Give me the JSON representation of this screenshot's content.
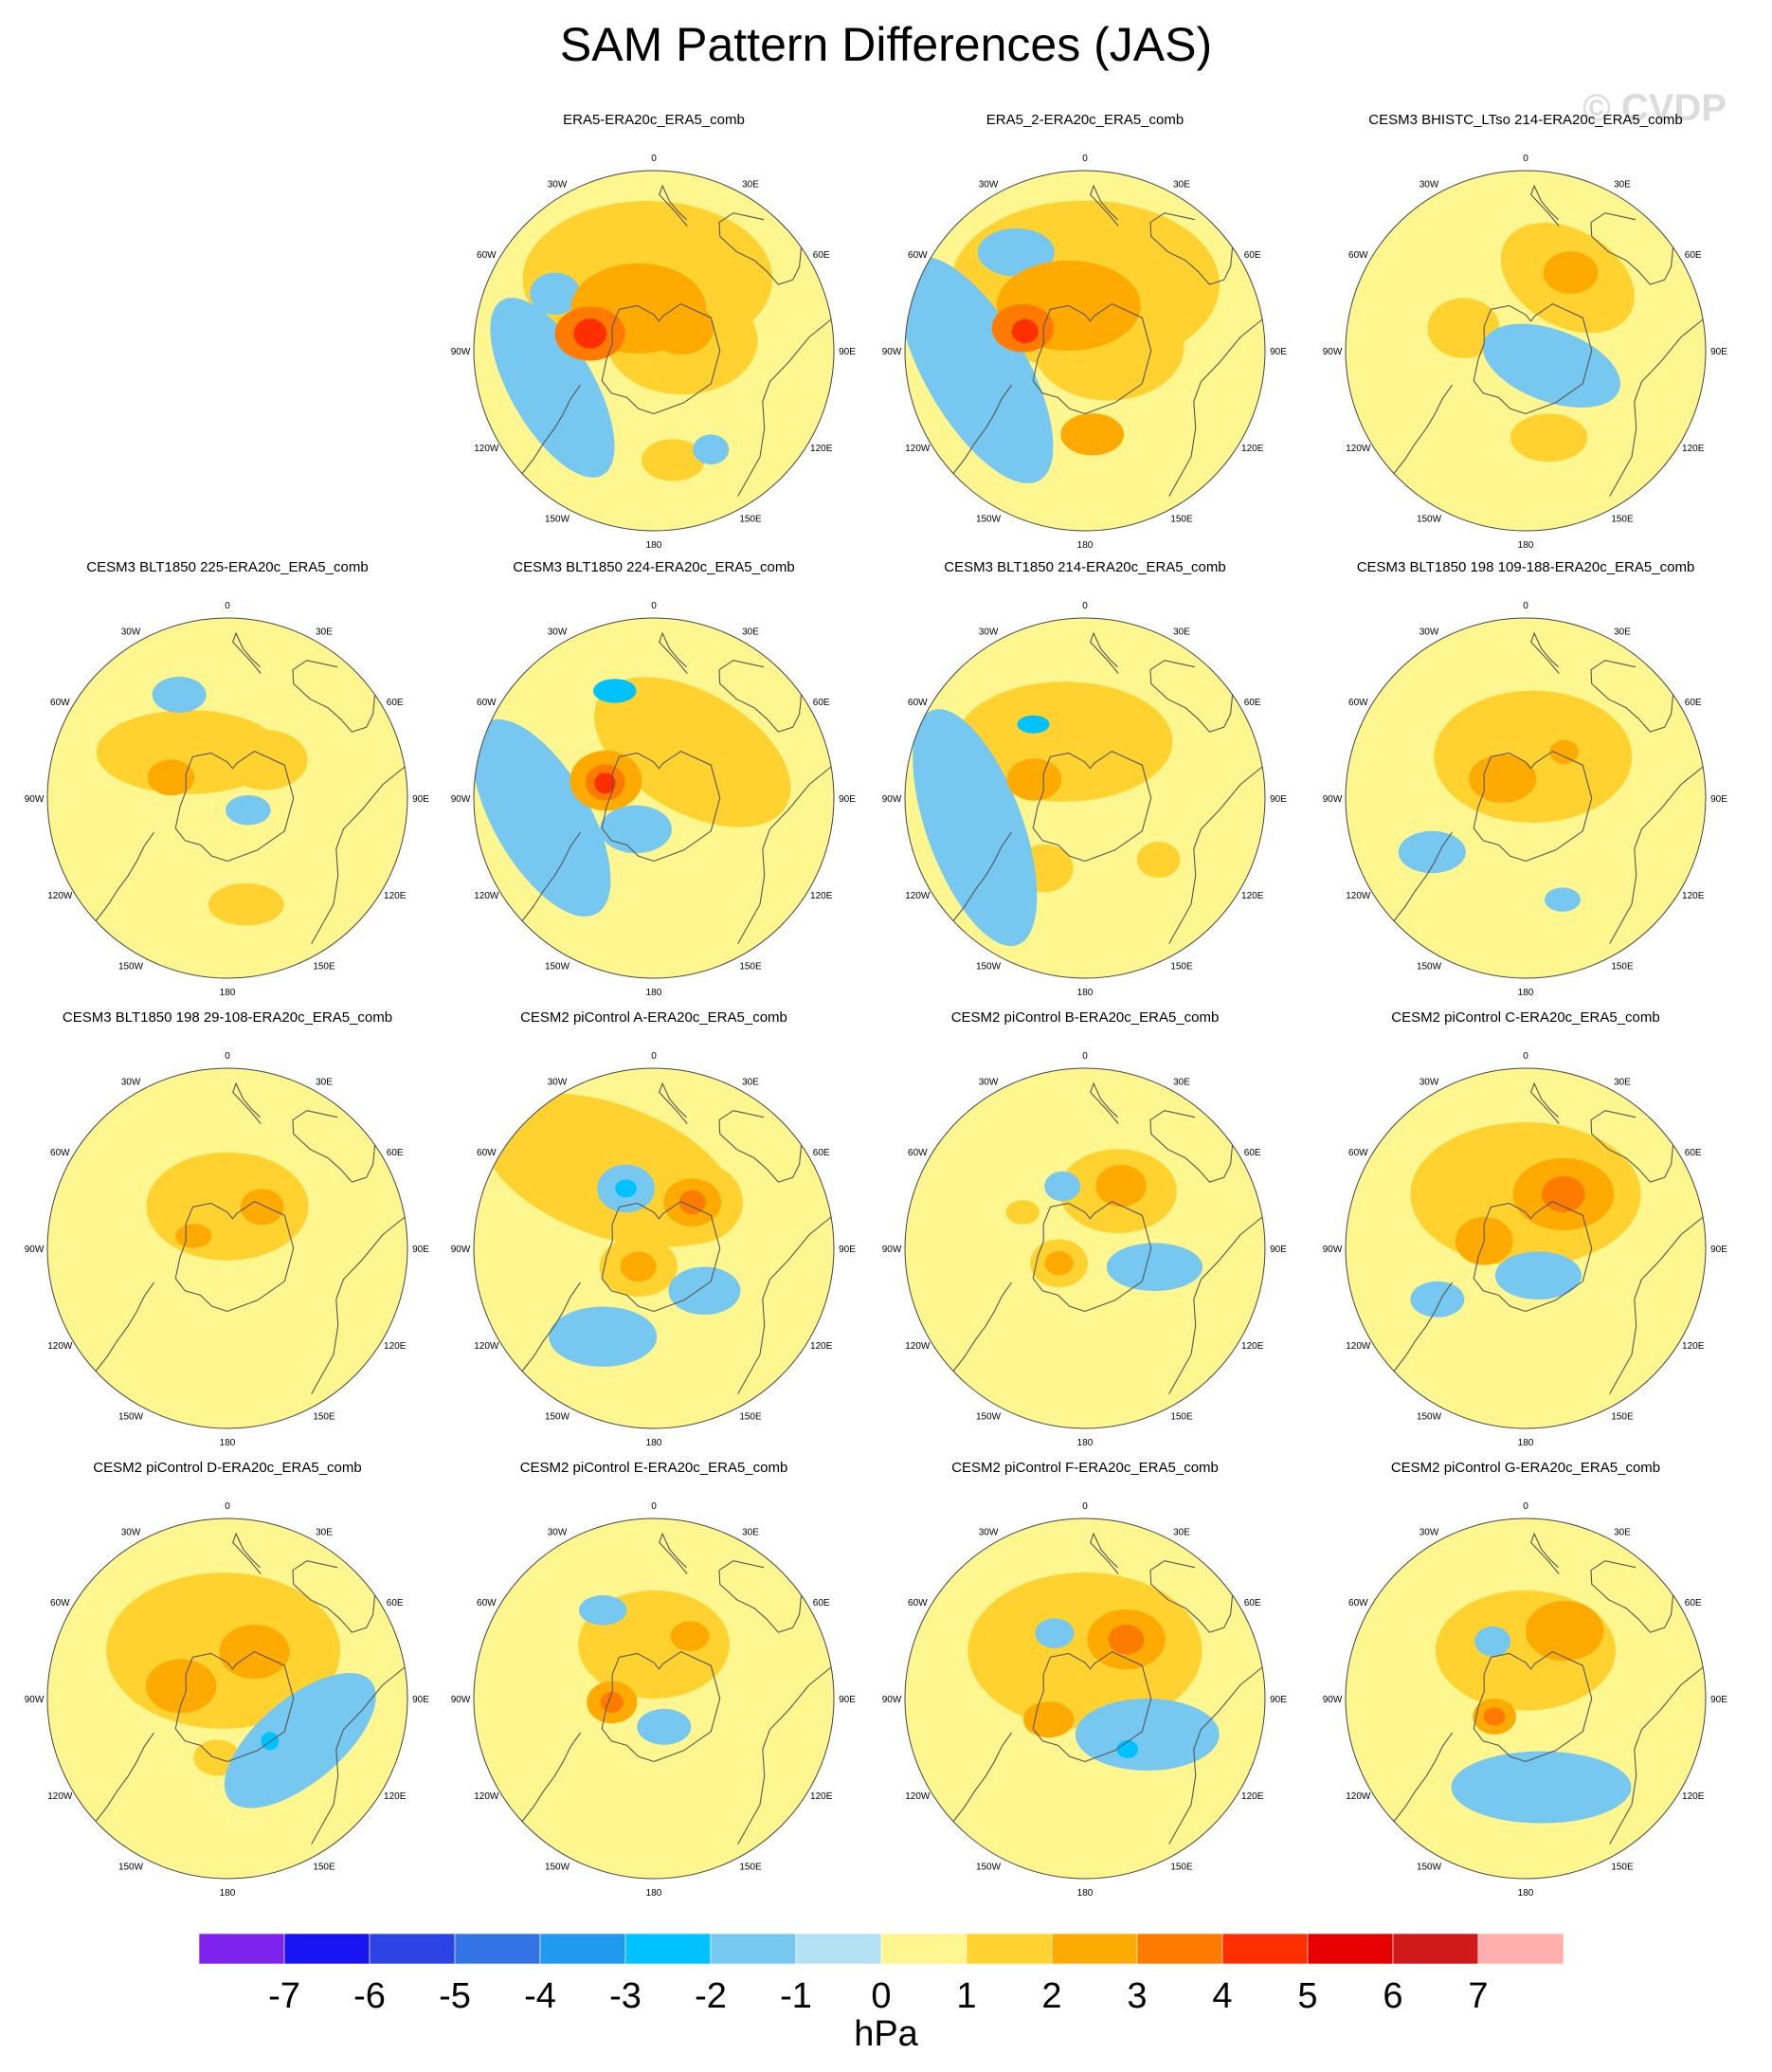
{
  "figure": {
    "title": "SAM Pattern Differences (JAS)",
    "watermark": "© CVDP"
  },
  "chart_data": {
    "type": "heatmap",
    "projection": "south-polar-stereographic",
    "variable": "SAM pattern difference",
    "units": "hPa",
    "lon_labels": [
      "0",
      "30E",
      "60E",
      "90E",
      "120E",
      "150E",
      "180",
      "150W",
      "120W",
      "90W",
      "60W",
      "30W"
    ],
    "colorbar": {
      "label": "hPa",
      "levels": [
        -7,
        -6,
        -5,
        -4,
        -3,
        -2,
        -1,
        0,
        1,
        2,
        3,
        4,
        5,
        6,
        7
      ],
      "colors": [
        "#7e22ee",
        "#1a13f3",
        "#2c44e6",
        "#3273e6",
        "#1f9af0",
        "#00c2ff",
        "#77c8f0",
        "#b3e0f3",
        "#fff68f",
        "#ffd22f",
        "#ffaa00",
        "#ff7b00",
        "#ff2f00",
        "#e60000",
        "#d01a1a",
        "#ffaeae"
      ]
    },
    "panels": [
      {
        "row": 0,
        "col": 1,
        "title": "ERA5-ERA20c_ERA5_comb",
        "blobs": [
          {
            "lon": 185,
            "colat": 24,
            "r": 26,
            "sx": 1.6,
            "rot": 0,
            "value": 1
          },
          {
            "lon": 110,
            "colat": 10,
            "r": 18,
            "sx": 1.4,
            "rot": 0,
            "value": 1
          },
          {
            "lon": 200,
            "colat": 15,
            "r": 15,
            "sx": 1.5,
            "rot": 0,
            "value": 2
          },
          {
            "lon": 130,
            "colat": 12,
            "r": 9,
            "sx": 1.2,
            "rot": 0,
            "value": 2
          },
          {
            "lon": 255,
            "colat": 22,
            "r": 9,
            "sx": 1.3,
            "rot": 0,
            "value": 3
          },
          {
            "lon": 255,
            "colat": 22,
            "r": 5,
            "sx": 1.1,
            "rot": 0,
            "value": 4
          },
          {
            "lon": 10,
            "colat": 37,
            "r": 7,
            "sx": 1.5,
            "rot": 0,
            "value": 1
          },
          {
            "lon": 290,
            "colat": 36,
            "r": 14,
            "sx": 2.4,
            "rot": 60,
            "value": -1
          },
          {
            "lon": 240,
            "colat": 38,
            "r": 7,
            "sx": 1.2,
            "rot": 0,
            "value": -1
          },
          {
            "lon": 30,
            "colat": 38,
            "r": 5,
            "sx": 1.2,
            "rot": 0,
            "value": -1
          }
        ]
      },
      {
        "row": 0,
        "col": 2,
        "title": "ERA5_2-ERA20c_ERA5_comb",
        "blobs": [
          {
            "lon": 180,
            "colat": 22,
            "r": 28,
            "sx": 1.6,
            "rot": 0,
            "value": 1
          },
          {
            "lon": 100,
            "colat": 8,
            "r": 18,
            "sx": 1.4,
            "rot": 0,
            "value": 1
          },
          {
            "lon": 200,
            "colat": 16,
            "r": 15,
            "sx": 1.6,
            "rot": 0,
            "value": 2
          },
          {
            "lon": 5,
            "colat": 28,
            "r": 7,
            "sx": 1.5,
            "rot": 0,
            "value": 2
          },
          {
            "lon": 250,
            "colat": 22,
            "r": 8,
            "sx": 1.3,
            "rot": 0,
            "value": 3
          },
          {
            "lon": 252,
            "colat": 21,
            "r": 4,
            "sx": 1.1,
            "rot": 0,
            "value": 4
          },
          {
            "lon": 280,
            "colat": 37,
            "r": 17,
            "sx": 2.5,
            "rot": 60,
            "value": -1
          },
          {
            "lon": 215,
            "colat": 40,
            "r": 8,
            "sx": 1.6,
            "rot": 0,
            "value": -1
          }
        ]
      },
      {
        "row": 0,
        "col": 3,
        "title": "CESM3 BHISTC_LTso 214-ERA20c_ERA5_comb",
        "blobs": [
          {
            "lon": 150,
            "colat": 28,
            "r": 16,
            "sx": 1.5,
            "rot": 30,
            "value": 1
          },
          {
            "lon": 150,
            "colat": 30,
            "r": 7,
            "sx": 1.3,
            "rot": 0,
            "value": 2
          },
          {
            "lon": 250,
            "colat": 22,
            "r": 10,
            "sx": 1.2,
            "rot": 0,
            "value": 1
          },
          {
            "lon": 15,
            "colat": 30,
            "r": 8,
            "sx": 1.6,
            "rot": 0,
            "value": 1
          },
          {
            "lon": 60,
            "colat": 10,
            "r": 12,
            "sx": 2.0,
            "rot": 20,
            "value": -1
          }
        ]
      },
      {
        "row": 1,
        "col": 0,
        "title": "CESM3 BLT1850 225-ERA20c_ERA5_comb",
        "blobs": [
          {
            "lon": 220,
            "colat": 20,
            "r": 14,
            "sx": 2.2,
            "rot": 0,
            "value": 1
          },
          {
            "lon": 135,
            "colat": 18,
            "r": 10,
            "sx": 1.4,
            "rot": 0,
            "value": 1
          },
          {
            "lon": 250,
            "colat": 20,
            "r": 6,
            "sx": 1.3,
            "rot": 0,
            "value": 2
          },
          {
            "lon": 10,
            "colat": 36,
            "r": 7,
            "sx": 1.8,
            "rot": 0,
            "value": 1
          },
          {
            "lon": 205,
            "colat": 38,
            "r": 6,
            "sx": 1.5,
            "rot": 0,
            "value": -1
          },
          {
            "lon": 60,
            "colat": 8,
            "r": 5,
            "sx": 1.5,
            "rot": 0,
            "value": -1
          }
        ]
      },
      {
        "row": 1,
        "col": 1,
        "title": "CESM3 BLT1850 224-ERA20c_ERA5_comb",
        "blobs": [
          {
            "lon": 140,
            "colat": 20,
            "r": 20,
            "sx": 1.8,
            "rot": 30,
            "value": 1
          },
          {
            "lon": 250,
            "colat": 17,
            "r": 10,
            "sx": 1.2,
            "rot": 0,
            "value": 2
          },
          {
            "lon": 252,
            "colat": 17,
            "r": 6,
            "sx": 1.1,
            "rot": 0,
            "value": 3
          },
          {
            "lon": 253,
            "colat": 17,
            "r": 3.5,
            "sx": 1.0,
            "rot": 0,
            "value": 4
          },
          {
            "lon": 280,
            "colat": 38,
            "r": 16,
            "sx": 2.3,
            "rot": 60,
            "value": -1
          },
          {
            "lon": 200,
            "colat": 38,
            "r": 4,
            "sx": 1.8,
            "rot": 0,
            "value": -2
          },
          {
            "lon": 330,
            "colat": 12,
            "r": 8,
            "sx": 1.5,
            "rot": 0,
            "value": -1
          }
        ]
      },
      {
        "row": 1,
        "col": 2,
        "title": "CESM3 BLT1850 214-ERA20c_ERA5_comb",
        "blobs": [
          {
            "lon": 200,
            "colat": 20,
            "r": 20,
            "sx": 1.8,
            "rot": 0,
            "value": 1
          },
          {
            "lon": 250,
            "colat": 18,
            "r": 7,
            "sx": 1.3,
            "rot": 0,
            "value": 2
          },
          {
            "lon": 330,
            "colat": 27,
            "r": 8,
            "sx": 1.2,
            "rot": 0,
            "value": 1
          },
          {
            "lon": 50,
            "colat": 32,
            "r": 6,
            "sx": 1.2,
            "rot": 0,
            "value": 1
          },
          {
            "lon": 285,
            "colat": 38,
            "r": 16,
            "sx": 2.6,
            "rot": 70,
            "value": -1
          },
          {
            "lon": 215,
            "colat": 30,
            "r": 3,
            "sx": 1.8,
            "rot": 0,
            "value": -2
          }
        ]
      },
      {
        "row": 1,
        "col": 3,
        "title": "CESM3 BLT1850 198 109-188-ERA20c_ERA5_comb",
        "blobs": [
          {
            "lon": 170,
            "colat": 14,
            "r": 22,
            "sx": 1.5,
            "rot": 0,
            "value": 1
          },
          {
            "lon": 230,
            "colat": 10,
            "r": 8,
            "sx": 1.4,
            "rot": 0,
            "value": 2
          },
          {
            "lon": 140,
            "colat": 20,
            "r": 4,
            "sx": 1.2,
            "rot": 0,
            "value": 2
          },
          {
            "lon": 300,
            "colat": 36,
            "r": 7,
            "sx": 1.6,
            "rot": 0,
            "value": -1
          },
          {
            "lon": 20,
            "colat": 36,
            "r": 4,
            "sx": 1.5,
            "rot": 0,
            "value": -1
          }
        ]
      },
      {
        "row": 2,
        "col": 0,
        "title": "CESM3 BLT1850 198 29-108-ERA20c_ERA5_comb",
        "blobs": [
          {
            "lon": 180,
            "colat": 14,
            "r": 18,
            "sx": 1.5,
            "rot": 0,
            "value": 1
          },
          {
            "lon": 140,
            "colat": 18,
            "r": 6,
            "sx": 1.2,
            "rot": 0,
            "value": 2
          },
          {
            "lon": 250,
            "colat": 12,
            "r": 4,
            "sx": 1.5,
            "rot": 0,
            "value": 2
          }
        ]
      },
      {
        "row": 2,
        "col": 1,
        "title": "CESM2 piControl A-ERA20c_ERA5_comb",
        "blobs": [
          {
            "lon": 210,
            "colat": 30,
            "r": 22,
            "sx": 2.0,
            "rot": 20,
            "value": 1
          },
          {
            "lon": 140,
            "colat": 20,
            "r": 14,
            "sx": 1.2,
            "rot": 0,
            "value": 1
          },
          {
            "lon": 140,
            "colat": 20,
            "r": 8,
            "sx": 1.2,
            "rot": 0,
            "value": 2
          },
          {
            "lon": 140,
            "colat": 20,
            "r": 4,
            "sx": 1.1,
            "rot": 0,
            "value": 3
          },
          {
            "lon": 320,
            "colat": 8,
            "r": 10,
            "sx": 1.3,
            "rot": 0,
            "value": 1
          },
          {
            "lon": 320,
            "colat": 8,
            "r": 5,
            "sx": 1.2,
            "rot": 0,
            "value": 2
          },
          {
            "lon": 205,
            "colat": 22,
            "r": 8,
            "sx": 1.2,
            "rot": 0,
            "value": -1
          },
          {
            "lon": 205,
            "colat": 22,
            "r": 3,
            "sx": 1.2,
            "rot": 0,
            "value": -2
          },
          {
            "lon": 50,
            "colat": 22,
            "r": 8,
            "sx": 1.5,
            "rot": 0,
            "value": -1
          },
          {
            "lon": 330,
            "colat": 34,
            "r": 10,
            "sx": 1.8,
            "rot": 0,
            "value": -1
          }
        ]
      },
      {
        "row": 2,
        "col": 2,
        "title": "CESM2 piControl B-ERA20c_ERA5_comb",
        "blobs": [
          {
            "lon": 150,
            "colat": 22,
            "r": 14,
            "sx": 1.4,
            "rot": 0,
            "value": 1
          },
          {
            "lon": 150,
            "colat": 24,
            "r": 7,
            "sx": 1.2,
            "rot": 0,
            "value": 2
          },
          {
            "lon": 300,
            "colat": 10,
            "r": 8,
            "sx": 1.2,
            "rot": 0,
            "value": 1
          },
          {
            "lon": 300,
            "colat": 10,
            "r": 4,
            "sx": 1.2,
            "rot": 0,
            "value": 2
          },
          {
            "lon": 240,
            "colat": 24,
            "r": 4,
            "sx": 1.4,
            "rot": 0,
            "value": 1
          },
          {
            "lon": 75,
            "colat": 24,
            "r": 8,
            "sx": 2.0,
            "rot": 0,
            "value": -1
          },
          {
            "lon": 200,
            "colat": 22,
            "r": 5,
            "sx": 1.2,
            "rot": 0,
            "value": -1
          }
        ]
      },
      {
        "row": 2,
        "col": 3,
        "title": "CESM2 piControl C-ERA20c_ERA5_comb",
        "blobs": [
          {
            "lon": 180,
            "colat": 18,
            "r": 24,
            "sx": 1.6,
            "rot": 0,
            "value": 1
          },
          {
            "lon": 145,
            "colat": 22,
            "r": 12,
            "sx": 1.4,
            "rot": 0,
            "value": 2
          },
          {
            "lon": 145,
            "colat": 22,
            "r": 6,
            "sx": 1.2,
            "rot": 0,
            "value": 3
          },
          {
            "lon": 260,
            "colat": 14,
            "r": 8,
            "sx": 1.2,
            "rot": 0,
            "value": 2
          },
          {
            "lon": 25,
            "colat": 10,
            "r": 8,
            "sx": 1.8,
            "rot": 0,
            "value": -1
          },
          {
            "lon": 300,
            "colat": 34,
            "r": 6,
            "sx": 1.5,
            "rot": 0,
            "value": -1
          }
        ]
      },
      {
        "row": 3,
        "col": 0,
        "title": "CESM2 piControl D-ERA20c_ERA5_comb",
        "blobs": [
          {
            "lon": 185,
            "colat": 16,
            "r": 26,
            "sx": 1.5,
            "rot": 0,
            "value": 1
          },
          {
            "lon": 150,
            "colat": 18,
            "r": 9,
            "sx": 1.3,
            "rot": 0,
            "value": 2
          },
          {
            "lon": 255,
            "colat": 16,
            "r": 9,
            "sx": 1.3,
            "rot": 0,
            "value": 2
          },
          {
            "lon": 350,
            "colat": 20,
            "r": 6,
            "sx": 1.3,
            "rot": 0,
            "value": 1
          },
          {
            "lon": 60,
            "colat": 28,
            "r": 14,
            "sx": 2.2,
            "rot": -40,
            "value": -1
          },
          {
            "lon": 45,
            "colat": 20,
            "r": 3,
            "sx": 1.0,
            "rot": 0,
            "value": -2
          }
        ]
      },
      {
        "row": 3,
        "col": 1,
        "title": "CESM2 piControl E-ERA20c_ERA5_comb",
        "blobs": [
          {
            "lon": 180,
            "colat": 18,
            "r": 18,
            "sx": 1.4,
            "rot": 0,
            "value": 1
          },
          {
            "lon": 275,
            "colat": 14,
            "r": 7,
            "sx": 1.2,
            "rot": 0,
            "value": 2
          },
          {
            "lon": 275,
            "colat": 14,
            "r": 3.5,
            "sx": 1.1,
            "rot": 0,
            "value": 3
          },
          {
            "lon": 150,
            "colat": 24,
            "r": 5,
            "sx": 1.3,
            "rot": 0,
            "value": 2
          },
          {
            "lon": 210,
            "colat": 34,
            "r": 5,
            "sx": 1.6,
            "rot": 0,
            "value": -1
          },
          {
            "lon": 20,
            "colat": 10,
            "r": 6,
            "sx": 1.5,
            "rot": 0,
            "value": -1
          }
        ]
      },
      {
        "row": 3,
        "col": 2,
        "title": "CESM2 piControl F-ERA20c_ERA5_comb",
        "blobs": [
          {
            "lon": 180,
            "colat": 16,
            "r": 26,
            "sx": 1.5,
            "rot": 0,
            "value": 1
          },
          {
            "lon": 145,
            "colat": 24,
            "r": 10,
            "sx": 1.3,
            "rot": 0,
            "value": 2
          },
          {
            "lon": 145,
            "colat": 24,
            "r": 5,
            "sx": 1.2,
            "rot": 0,
            "value": 3
          },
          {
            "lon": 300,
            "colat": 14,
            "r": 6,
            "sx": 1.4,
            "rot": 0,
            "value": 2
          },
          {
            "lon": 60,
            "colat": 24,
            "r": 12,
            "sx": 2.0,
            "rot": 0,
            "value": -1
          },
          {
            "lon": 205,
            "colat": 24,
            "r": 5,
            "sx": 1.3,
            "rot": 0,
            "value": -1
          },
          {
            "lon": 40,
            "colat": 22,
            "r": 3,
            "sx": 1.2,
            "rot": 0,
            "value": -2
          }
        ]
      },
      {
        "row": 3,
        "col": 3,
        "title": "CESM2 piControl G-ERA20c_ERA5_comb",
        "blobs": [
          {
            "lon": 180,
            "colat": 16,
            "r": 20,
            "sx": 1.5,
            "rot": 0,
            "value": 1
          },
          {
            "lon": 150,
            "colat": 26,
            "r": 10,
            "sx": 1.3,
            "rot": 0,
            "value": 2
          },
          {
            "lon": 300,
            "colat": 12,
            "r": 6,
            "sx": 1.2,
            "rot": 0,
            "value": 2
          },
          {
            "lon": 300,
            "colat": 12,
            "r": 3,
            "sx": 1.2,
            "rot": 0,
            "value": 3
          },
          {
            "lon": 10,
            "colat": 30,
            "r": 12,
            "sx": 2.5,
            "rot": 0,
            "value": -1
          },
          {
            "lon": 210,
            "colat": 22,
            "r": 5,
            "sx": 1.2,
            "rot": 0,
            "value": -1
          }
        ]
      }
    ]
  }
}
